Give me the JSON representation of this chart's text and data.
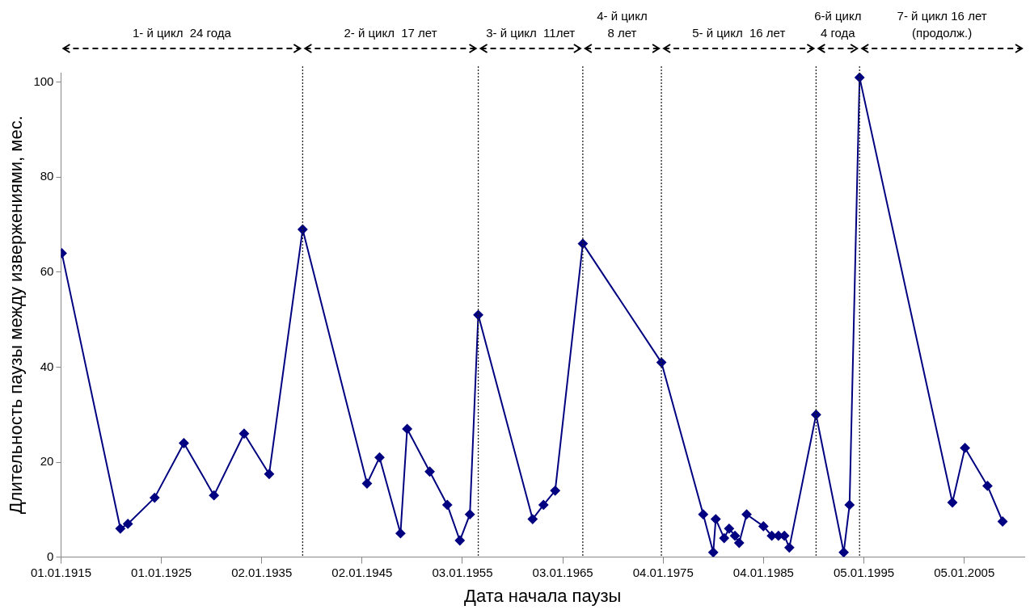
{
  "chart_data": {
    "type": "line",
    "xlabel": "Дата начала паузы",
    "ylabel": "Длительность паузы между извержениями, мес.",
    "x": [
      "1915-02",
      "1920-12",
      "1921-09",
      "1924-05",
      "1927-04",
      "1930-04",
      "1933-04",
      "1935-10",
      "1939-02",
      "1945-07",
      "1946-10",
      "1948-11",
      "1949-07",
      "1951-10",
      "1953-07",
      "1954-10",
      "1955-10",
      "1956-08",
      "1962-01",
      "1963-02",
      "1964-04",
      "1967-01",
      "1974-11",
      "1979-01",
      "1980-01",
      "1980-04",
      "1981-02",
      "1981-08",
      "1982-03",
      "1982-08",
      "1983-05",
      "1985-01",
      "1985-11",
      "1986-07",
      "1987-02",
      "1987-08",
      "1990-04",
      "1993-01",
      "1993-08",
      "1994-08",
      "2003-11",
      "2005-02",
      "2007-05",
      "2008-11"
    ],
    "series": [
      {
        "color": "#000080",
        "values": [
          64,
          6,
          7,
          12.5,
          24,
          13,
          26,
          17.5,
          69,
          15.5,
          21,
          5,
          27,
          18,
          11,
          3.5,
          9,
          51,
          8,
          11,
          14,
          66,
          41,
          9,
          1,
          8,
          4,
          6,
          4.5,
          3,
          9,
          6.5,
          4.5,
          4.5,
          4.5,
          2,
          30,
          1,
          11,
          101,
          11.5,
          23,
          15,
          7.5
        ]
      }
    ],
    "xlim": [
      "1915-01-01",
      "2011-01-01"
    ],
    "xticks": [
      {
        "value": "1915-01-01",
        "label": "01.01.1915"
      },
      {
        "value": "1925-01-01",
        "label": "01.01.1925"
      },
      {
        "value": "1935-01-02",
        "label": "02.01.1935"
      },
      {
        "value": "1945-01-02",
        "label": "02.01.1945"
      },
      {
        "value": "1955-01-03",
        "label": "03.01.1955"
      },
      {
        "value": "1965-01-03",
        "label": "03.01.1965"
      },
      {
        "value": "1975-01-04",
        "label": "04.01.1975"
      },
      {
        "value": "1985-01-04",
        "label": "04.01.1985"
      },
      {
        "value": "1995-01-05",
        "label": "05.01.1995"
      },
      {
        "value": "2005-01-05",
        "label": "05.01.2005"
      }
    ],
    "ylim": [
      0,
      102
    ],
    "yticks": [
      0,
      20,
      40,
      60,
      80,
      100
    ],
    "grid": false,
    "legend": false,
    "marker": "diamond",
    "line_style": "solid",
    "ref_lines": [
      {
        "axis": "x",
        "value": "1939-02",
        "line_style": "dotted"
      },
      {
        "axis": "x",
        "value": "1956-08",
        "line_style": "dotted"
      },
      {
        "axis": "x",
        "value": "1967-01",
        "line_style": "dotted"
      },
      {
        "axis": "x",
        "value": "1974-11",
        "line_style": "dotted"
      },
      {
        "axis": "x",
        "value": "1990-04",
        "line_style": "dotted"
      },
      {
        "axis": "x",
        "value": "1994-08",
        "line_style": "dotted"
      }
    ],
    "annotations": [
      "1- й цикл  24 года",
      "2- й цикл  17 лет",
      "3- й цикл  11лет",
      "4- й цикл\n8 лет",
      "5- й цикл  16 лет",
      "6-й цикл\n4 года",
      "7- й цикл 16 лет\n(продолж.)"
    ]
  }
}
